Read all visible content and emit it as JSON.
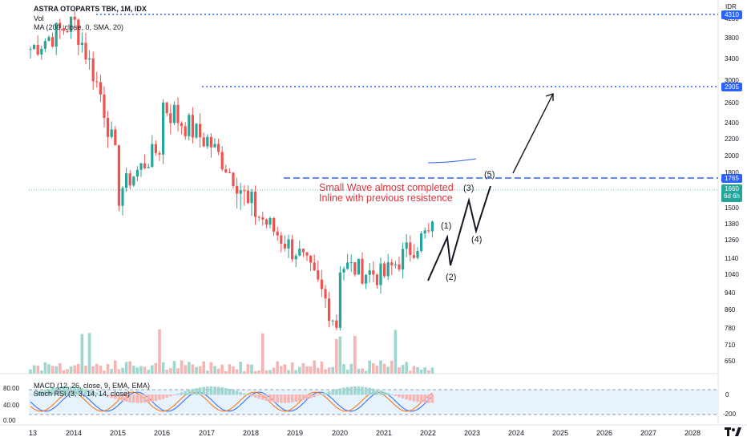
{
  "header": {
    "title": "ASTRA OTOPARTS TBK, 1M, IDX",
    "volume_label": "Vol",
    "ma_label": "MA (200, close, 0, SMA, 20)",
    "currency": "IDR"
  },
  "price_axis": {
    "ticks": [
      "4200",
      "3800",
      "3400",
      "3000",
      "2600",
      "2400",
      "2200",
      "2000",
      "1800",
      "1600",
      "1500",
      "1380",
      "1260",
      "1140",
      "1040",
      "940",
      "860",
      "780",
      "710",
      "650"
    ]
  },
  "price_labels": {
    "top": "4310",
    "target": "2905",
    "resistance": "1765",
    "current": "1660",
    "countdown": "6d 6h"
  },
  "annotation": {
    "line1": "Small Wave almost completed",
    "line2": "Inline with previous resistence"
  },
  "waves": {
    "w1": "(1)",
    "w2": "(2)",
    "w3": "(3)",
    "w4": "(4)",
    "w5": "(5)"
  },
  "indicators": {
    "macd_label": "MACD (12, 26, close, 9, EMA, EMA)",
    "stoch_label": "Stoch RSI (3, 3, 14, 14, close)",
    "macd_ticks": [
      "0",
      "-200"
    ],
    "stoch_ticks": [
      "80.00",
      "40.00",
      "0.00"
    ]
  },
  "time_axis": {
    "labels": [
      "13",
      "2014",
      "2015",
      "2016",
      "2017",
      "2018",
      "2019",
      "2020",
      "2021",
      "2022",
      "2023",
      "2024",
      "2025",
      "2026",
      "2027",
      "2028"
    ]
  },
  "colors": {
    "up": "#26a69a",
    "down": "#ef5350",
    "up_vol": "#9fd6cf",
    "down_vol": "#f6b4b2",
    "dotted_level": "#2962ff",
    "annotation": "#e0323c"
  },
  "chart_data": {
    "type": "candlestick",
    "timeframe": "1M",
    "symbol": "ASTRA OTOPARTS TBK",
    "exchange": "IDX",
    "levels": {
      "previous_high": 4310,
      "target": 2905,
      "resistance": 1765,
      "current": 1660
    },
    "yearly_path": [
      {
        "year": 2014,
        "open": 3600,
        "close": 4100
      },
      {
        "year": 2015,
        "open": 4100,
        "close": 2000
      },
      {
        "year": 2016,
        "open": 1600,
        "close": 2100
      },
      {
        "year": 2017,
        "open": 2600,
        "close": 2200
      },
      {
        "year": 2018,
        "open": 2200,
        "close": 1500
      },
      {
        "year": 2019,
        "open": 1500,
        "close": 1200
      },
      {
        "year": 2020,
        "open": 1200,
        "close": 800
      },
      {
        "year": 2021,
        "open": 1100,
        "close": 1040
      },
      {
        "year": 2022,
        "open": 1040,
        "close": 1300
      },
      {
        "year": 2023,
        "open": 1300,
        "close": 1660
      }
    ]
  }
}
